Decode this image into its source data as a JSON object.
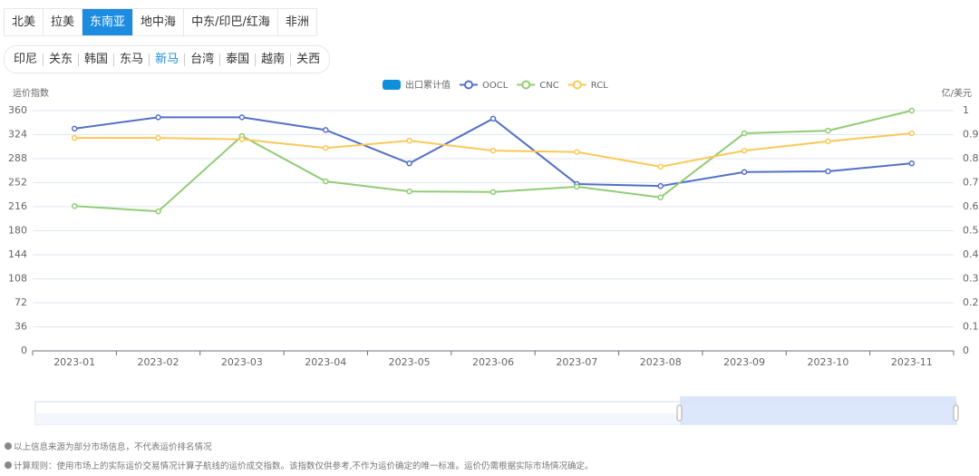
{
  "tabs_region": {
    "items": [
      "北美",
      "拉美",
      "东南亚",
      "地中海",
      "中东/印巴/红海",
      "非洲"
    ],
    "active": 2
  },
  "tabs_route": {
    "items": [
      "印尼",
      "关东",
      "韩国",
      "东马",
      "新马",
      "台湾",
      "泰国",
      "越南",
      "关西"
    ],
    "active": 4
  },
  "chart_data": {
    "type": "line",
    "y_label": "运价指数",
    "y2_label": "亿/美元",
    "categories": [
      "2023-01",
      "2023-02",
      "2023-03",
      "2023-04",
      "2023-05",
      "2023-06",
      "2023-07",
      "2023-08",
      "2023-09",
      "2023-10",
      "2023-11"
    ],
    "series": [
      {
        "name": "出口累计值",
        "color": "#0e8fdc",
        "kind": "bar",
        "axis": "y2",
        "values": [
          null,
          null,
          null,
          null,
          null,
          null,
          null,
          null,
          null,
          null,
          null
        ]
      },
      {
        "name": "OOCL",
        "color": "#5470c6",
        "values": [
          333,
          350,
          350,
          331,
          281,
          348,
          250,
          247,
          268,
          269,
          281
        ]
      },
      {
        "name": "CNC",
        "color": "#91cc75",
        "values": [
          217,
          209,
          322,
          254,
          239,
          238,
          246,
          230,
          326,
          330,
          360
        ]
      },
      {
        "name": "RCL",
        "color": "#fac858",
        "values": [
          319,
          319,
          317,
          304,
          315,
          300,
          298,
          276,
          300,
          314,
          326
        ]
      }
    ],
    "ylim": [
      0,
      360
    ],
    "yticks": [
      0,
      36,
      72,
      108,
      144,
      180,
      216,
      252,
      288,
      324,
      360
    ],
    "y2lim": [
      0,
      1
    ],
    "y2ticks": [
      0,
      0.1,
      0.2,
      0.3,
      0.4,
      0.5,
      0.6,
      0.7,
      0.8,
      0.9,
      1
    ],
    "grid": true
  },
  "notes": [
    "以上信息来源为部分市场信息，不代表运价排名情况",
    "计算规则：使用市场上的实际运价交易情况计算子航线的运价成交指数。该指数仅供参考,不作为运价确定的唯一标准。运价仍需根据实际市场情况确定。"
  ]
}
